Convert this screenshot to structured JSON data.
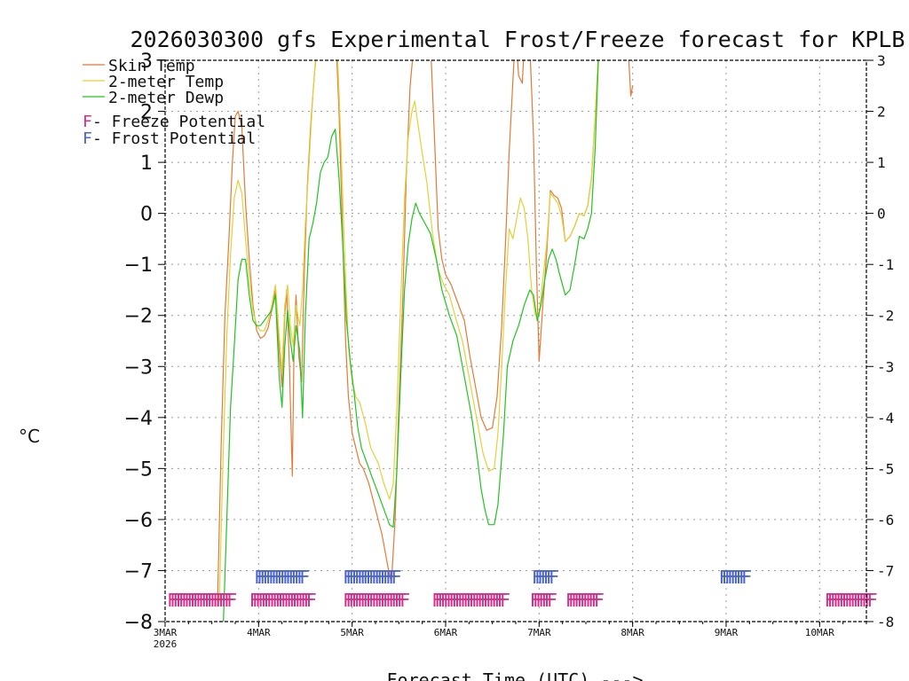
{
  "chart_data": {
    "type": "line",
    "title": "2026030300 gfs Experimental Frost/Freeze forecast for KPLB",
    "xlabel": "Forecast Time (UTC) --->",
    "ylabel": "°C",
    "ylim": [
      -8,
      3
    ],
    "xlim": [
      0,
      7.5
    ],
    "grid": true,
    "yticks": [
      -8,
      -7,
      -6,
      -5,
      -4,
      -3,
      -2,
      -1,
      0,
      1,
      2,
      3
    ],
    "yticks_right": [
      "-8",
      "-7",
      "-6",
      "-5",
      "-4",
      "-3",
      "-2",
      "-1",
      "0",
      "1",
      "2",
      "3"
    ],
    "yticks_left": [
      "−8",
      "−7",
      "−6",
      "−5",
      "−4",
      "−3",
      "−2",
      "−1",
      "0",
      "1",
      "2",
      "3"
    ],
    "xticks": [
      {
        "x": 0,
        "label": "3MAR",
        "sublabel": "2026"
      },
      {
        "x": 1,
        "label": "4MAR",
        "sublabel": ""
      },
      {
        "x": 2,
        "label": "5MAR",
        "sublabel": ""
      },
      {
        "x": 3,
        "label": "6MAR",
        "sublabel": ""
      },
      {
        "x": 4,
        "label": "7MAR",
        "sublabel": ""
      },
      {
        "x": 5,
        "label": "8MAR",
        "sublabel": ""
      },
      {
        "x": 6,
        "label": "9MAR",
        "sublabel": ""
      },
      {
        "x": 7,
        "label": "10MAR",
        "sublabel": ""
      }
    ],
    "legend": {
      "placement": "top-left",
      "lines": [
        {
          "label": "Skin Temp",
          "color": "#e07b39"
        },
        {
          "label": "2-meter Temp",
          "color": "#e0d23a"
        },
        {
          "label": "2-meter Dewp",
          "color": "#22c322"
        }
      ],
      "markers": [
        {
          "letter": "F",
          "label": " - Freeze Potential",
          "color": "#d0308a"
        },
        {
          "letter": "F",
          "label": " - Frost Potential",
          "color": "#4a64c8"
        }
      ]
    },
    "series": [
      {
        "name": "Skin Temp",
        "color": "#e07b39",
        "points": [
          [
            0.56,
            -7.7
          ],
          [
            0.6,
            -4.5
          ],
          [
            0.64,
            -2.0
          ],
          [
            0.68,
            -0.6
          ],
          [
            0.72,
            1.0
          ],
          [
            0.75,
            1.9
          ],
          [
            0.78,
            2.0
          ],
          [
            0.82,
            1.7
          ],
          [
            0.86,
            0.2
          ],
          [
            0.9,
            -0.9
          ],
          [
            0.94,
            -1.8
          ],
          [
            0.98,
            -2.3
          ],
          [
            1.02,
            -2.45
          ],
          [
            1.06,
            -2.4
          ],
          [
            1.1,
            -2.25
          ],
          [
            1.14,
            -1.9
          ],
          [
            1.18,
            -1.5
          ],
          [
            1.22,
            -2.7
          ],
          [
            1.25,
            -3.4
          ],
          [
            1.28,
            -2.0
          ],
          [
            1.3,
            -1.5
          ],
          [
            1.33,
            -3.0
          ],
          [
            1.36,
            -5.15
          ],
          [
            1.38,
            -2.4
          ],
          [
            1.4,
            -1.6
          ],
          [
            1.43,
            -2.8
          ],
          [
            1.46,
            -3.3
          ],
          [
            1.49,
            -1.1
          ],
          [
            1.52,
            0.5
          ],
          [
            1.56,
            1.8
          ],
          [
            1.6,
            2.8
          ],
          [
            1.63,
            3.3
          ],
          [
            1.83,
            3.3
          ],
          [
            1.86,
            2.0
          ],
          [
            1.9,
            -0.5
          ],
          [
            1.93,
            -2.5
          ],
          [
            1.96,
            -3.6
          ],
          [
            2.0,
            -4.3
          ],
          [
            2.04,
            -4.6
          ],
          [
            2.08,
            -4.9
          ],
          [
            2.12,
            -5.0
          ],
          [
            2.18,
            -5.3
          ],
          [
            2.25,
            -5.8
          ],
          [
            2.32,
            -6.3
          ],
          [
            2.38,
            -6.9
          ],
          [
            2.42,
            -7.25
          ],
          [
            2.46,
            -6.0
          ],
          [
            2.5,
            -3.8
          ],
          [
            2.54,
            -1.8
          ],
          [
            2.58,
            0.8
          ],
          [
            2.62,
            2.5
          ],
          [
            2.66,
            3.3
          ],
          [
            2.84,
            3.3
          ],
          [
            2.88,
            1.5
          ],
          [
            2.92,
            -0.3
          ],
          [
            2.96,
            -0.9
          ],
          [
            3.0,
            -1.2
          ],
          [
            3.06,
            -1.4
          ],
          [
            3.12,
            -1.7
          ],
          [
            3.2,
            -2.1
          ],
          [
            3.26,
            -2.8
          ],
          [
            3.32,
            -3.4
          ],
          [
            3.38,
            -4.0
          ],
          [
            3.44,
            -4.25
          ],
          [
            3.5,
            -4.2
          ],
          [
            3.55,
            -3.6
          ],
          [
            3.6,
            -2.2
          ],
          [
            3.64,
            -0.6
          ],
          [
            3.68,
            1.2
          ],
          [
            3.72,
            2.6
          ],
          [
            3.74,
            3.3
          ],
          [
            3.76,
            3.3
          ],
          [
            3.78,
            2.7
          ],
          [
            3.82,
            2.55
          ],
          [
            3.84,
            3.3
          ],
          [
            3.9,
            3.3
          ],
          [
            3.94,
            1.5
          ],
          [
            3.97,
            -1.0
          ],
          [
            4.0,
            -2.9
          ],
          [
            4.04,
            -1.8
          ],
          [
            4.08,
            -0.8
          ],
          [
            4.12,
            0.45
          ],
          [
            4.16,
            0.35
          ],
          [
            4.2,
            0.3
          ],
          [
            4.24,
            0.1
          ],
          [
            4.28,
            -0.55
          ],
          [
            4.33,
            -0.45
          ],
          [
            4.38,
            -0.25
          ],
          [
            4.43,
            0.0
          ],
          [
            4.48,
            -0.05
          ],
          [
            4.52,
            0.15
          ],
          [
            4.56,
            0.7
          ],
          [
            4.6,
            1.9
          ],
          [
            4.64,
            3.3
          ],
          [
            4.95,
            3.3
          ],
          [
            4.98,
            2.3
          ],
          [
            5.0,
            2.5
          ]
        ]
      },
      {
        "name": "2-meter Temp",
        "color": "#e0d23a",
        "points": [
          [
            0.58,
            -7.6
          ],
          [
            0.62,
            -4.8
          ],
          [
            0.66,
            -2.4
          ],
          [
            0.7,
            -0.8
          ],
          [
            0.74,
            0.3
          ],
          [
            0.78,
            0.65
          ],
          [
            0.82,
            0.4
          ],
          [
            0.86,
            -0.5
          ],
          [
            0.9,
            -1.3
          ],
          [
            0.94,
            -1.9
          ],
          [
            0.98,
            -2.2
          ],
          [
            1.02,
            -2.3
          ],
          [
            1.06,
            -2.3
          ],
          [
            1.1,
            -2.1
          ],
          [
            1.14,
            -1.8
          ],
          [
            1.18,
            -1.4
          ],
          [
            1.22,
            -2.4
          ],
          [
            1.25,
            -3.1
          ],
          [
            1.28,
            -1.8
          ],
          [
            1.31,
            -1.4
          ],
          [
            1.34,
            -2.2
          ],
          [
            1.37,
            -2.6
          ],
          [
            1.4,
            -1.8
          ],
          [
            1.44,
            -2.2
          ],
          [
            1.47,
            -1.5
          ],
          [
            1.5,
            -0.2
          ],
          [
            1.54,
            1.0
          ],
          [
            1.58,
            2.3
          ],
          [
            1.62,
            3.3
          ],
          [
            1.84,
            3.3
          ],
          [
            1.88,
            1.4
          ],
          [
            1.92,
            -0.8
          ],
          [
            1.96,
            -2.6
          ],
          [
            2.0,
            -3.3
          ],
          [
            2.04,
            -3.6
          ],
          [
            2.08,
            -3.7
          ],
          [
            2.14,
            -4.1
          ],
          [
            2.2,
            -4.6
          ],
          [
            2.28,
            -4.9
          ],
          [
            2.34,
            -5.3
          ],
          [
            2.4,
            -5.6
          ],
          [
            2.44,
            -5.3
          ],
          [
            2.48,
            -3.8
          ],
          [
            2.52,
            -1.7
          ],
          [
            2.56,
            0.3
          ],
          [
            2.6,
            1.5
          ],
          [
            2.64,
            2.0
          ],
          [
            2.67,
            2.2
          ],
          [
            2.7,
            1.8
          ],
          [
            2.74,
            1.3
          ],
          [
            2.8,
            0.6
          ],
          [
            2.86,
            -0.4
          ],
          [
            2.92,
            -1.1
          ],
          [
            2.98,
            -1.4
          ],
          [
            3.04,
            -1.6
          ],
          [
            3.1,
            -2.0
          ],
          [
            3.18,
            -2.5
          ],
          [
            3.26,
            -3.3
          ],
          [
            3.34,
            -4.1
          ],
          [
            3.4,
            -4.7
          ],
          [
            3.46,
            -5.05
          ],
          [
            3.52,
            -5.0
          ],
          [
            3.56,
            -4.3
          ],
          [
            3.6,
            -3.0
          ],
          [
            3.64,
            -1.5
          ],
          [
            3.68,
            -0.3
          ],
          [
            3.72,
            -0.5
          ],
          [
            3.76,
            -0.1
          ],
          [
            3.8,
            0.3
          ],
          [
            3.84,
            0.1
          ],
          [
            3.88,
            -0.5
          ],
          [
            3.92,
            -1.5
          ],
          [
            3.96,
            -2.0
          ],
          [
            4.0,
            -2.0
          ],
          [
            4.04,
            -1.3
          ],
          [
            4.08,
            -0.6
          ],
          [
            4.12,
            0.4
          ],
          [
            4.16,
            0.3
          ],
          [
            4.2,
            0.2
          ],
          [
            4.24,
            -0.05
          ],
          [
            4.28,
            -0.55
          ],
          [
            4.33,
            -0.45
          ],
          [
            4.38,
            -0.25
          ],
          [
            4.43,
            0.0
          ],
          [
            4.48,
            -0.05
          ],
          [
            4.52,
            0.15
          ],
          [
            4.56,
            0.7
          ],
          [
            4.6,
            1.9
          ],
          [
            4.64,
            3.3
          ]
        ]
      },
      {
        "name": "2-meter Dewp",
        "color": "#22c322",
        "points": [
          [
            0.62,
            -8.2
          ],
          [
            0.66,
            -6.0
          ],
          [
            0.7,
            -3.8
          ],
          [
            0.74,
            -2.6
          ],
          [
            0.78,
            -1.3
          ],
          [
            0.82,
            -0.9
          ],
          [
            0.86,
            -0.9
          ],
          [
            0.9,
            -1.6
          ],
          [
            0.94,
            -2.1
          ],
          [
            0.98,
            -2.2
          ],
          [
            1.02,
            -2.2
          ],
          [
            1.06,
            -2.1
          ],
          [
            1.1,
            -2.0
          ],
          [
            1.14,
            -1.9
          ],
          [
            1.18,
            -1.6
          ],
          [
            1.22,
            -3.2
          ],
          [
            1.25,
            -3.8
          ],
          [
            1.28,
            -2.6
          ],
          [
            1.31,
            -1.9
          ],
          [
            1.34,
            -2.5
          ],
          [
            1.37,
            -2.9
          ],
          [
            1.4,
            -2.2
          ],
          [
            1.44,
            -2.7
          ],
          [
            1.47,
            -4.0
          ],
          [
            1.5,
            -2.0
          ],
          [
            1.54,
            -0.5
          ],
          [
            1.58,
            -0.2
          ],
          [
            1.62,
            0.2
          ],
          [
            1.66,
            0.8
          ],
          [
            1.7,
            1.0
          ],
          [
            1.74,
            1.1
          ],
          [
            1.78,
            1.5
          ],
          [
            1.82,
            1.65
          ],
          [
            1.86,
            0.7
          ],
          [
            1.9,
            -0.6
          ],
          [
            1.94,
            -2.1
          ],
          [
            1.98,
            -2.9
          ],
          [
            2.02,
            -3.5
          ],
          [
            2.06,
            -4.2
          ],
          [
            2.1,
            -4.6
          ],
          [
            2.16,
            -4.9
          ],
          [
            2.22,
            -5.2
          ],
          [
            2.28,
            -5.5
          ],
          [
            2.34,
            -5.8
          ],
          [
            2.4,
            -6.1
          ],
          [
            2.44,
            -6.15
          ],
          [
            2.48,
            -5.0
          ],
          [
            2.52,
            -3.2
          ],
          [
            2.56,
            -1.5
          ],
          [
            2.6,
            -0.6
          ],
          [
            2.64,
            -0.1
          ],
          [
            2.68,
            0.2
          ],
          [
            2.72,
            0.0
          ],
          [
            2.78,
            -0.2
          ],
          [
            2.84,
            -0.4
          ],
          [
            2.9,
            -0.9
          ],
          [
            2.96,
            -1.5
          ],
          [
            3.04,
            -2.0
          ],
          [
            3.12,
            -2.4
          ],
          [
            3.2,
            -3.2
          ],
          [
            3.28,
            -4.0
          ],
          [
            3.34,
            -4.8
          ],
          [
            3.38,
            -5.4
          ],
          [
            3.42,
            -5.8
          ],
          [
            3.46,
            -6.1
          ],
          [
            3.52,
            -6.1
          ],
          [
            3.56,
            -5.7
          ],
          [
            3.62,
            -4.3
          ],
          [
            3.66,
            -3.0
          ],
          [
            3.72,
            -2.5
          ],
          [
            3.78,
            -2.2
          ],
          [
            3.84,
            -1.8
          ],
          [
            3.9,
            -1.5
          ],
          [
            3.94,
            -1.6
          ],
          [
            3.98,
            -2.1
          ],
          [
            4.02,
            -1.8
          ],
          [
            4.06,
            -1.3
          ],
          [
            4.1,
            -0.9
          ],
          [
            4.14,
            -0.7
          ],
          [
            4.18,
            -0.9
          ],
          [
            4.22,
            -1.2
          ],
          [
            4.28,
            -1.6
          ],
          [
            4.33,
            -1.5
          ],
          [
            4.38,
            -1.0
          ],
          [
            4.43,
            -0.45
          ],
          [
            4.48,
            -0.5
          ],
          [
            4.52,
            -0.3
          ],
          [
            4.56,
            0.0
          ],
          [
            4.6,
            1.3
          ],
          [
            4.64,
            3.3
          ]
        ]
      }
    ],
    "freeze_markers": {
      "letter": "F",
      "color": "#d0308a",
      "y": -7.55,
      "segments": [
        [
          0.02,
          0.7
        ],
        [
          0.9,
          1.55
        ],
        [
          1.9,
          2.55
        ],
        [
          2.85,
          3.6
        ],
        [
          3.9,
          4.1
        ],
        [
          4.28,
          4.6
        ],
        [
          7.05,
          7.55
        ]
      ]
    },
    "frost_markers": {
      "letter": "F",
      "color": "#4a64c8",
      "y": -7.1,
      "segments": [
        [
          0.95,
          1.48
        ],
        [
          1.9,
          2.45
        ],
        [
          3.92,
          4.12
        ],
        [
          5.92,
          6.18
        ]
      ]
    }
  }
}
